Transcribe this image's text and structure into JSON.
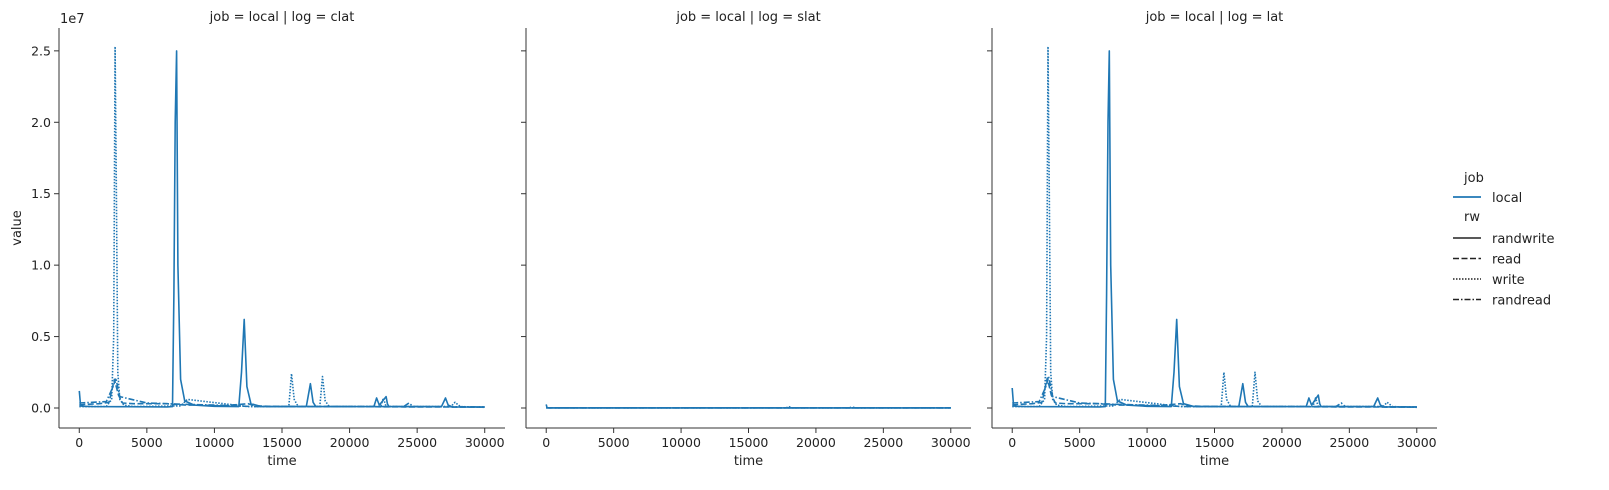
{
  "figure": {
    "shared_ylabel": "value",
    "y_offset_label": "1e7"
  },
  "legend": {
    "job_title": "job",
    "job_entries": [
      {
        "label": "local",
        "color": "#1f77b4"
      }
    ],
    "rw_title": "rw",
    "rw_entries": [
      {
        "label": "randwrite",
        "style": "solid"
      },
      {
        "label": "read",
        "style": "dashed"
      },
      {
        "label": "write",
        "style": "dotted"
      },
      {
        "label": "randread",
        "style": "dashdot"
      }
    ]
  },
  "chart_data": [
    {
      "type": "line",
      "title": "job = local | log = clat",
      "xlabel": "time",
      "ylabel": "value",
      "xlim": [
        -1500,
        31500
      ],
      "ylim": [
        -1400000,
        26600000
      ],
      "x_ticks": [
        0,
        5000,
        10000,
        15000,
        20000,
        25000,
        30000
      ],
      "y_ticks": [
        0,
        5000000,
        10000000,
        15000000,
        20000000,
        25000000
      ],
      "y_tick_labels": [
        "0.0",
        "0.5",
        "1.0",
        "1.5",
        "2.0",
        "2.5"
      ],
      "grid": false,
      "series": [
        {
          "name": "randwrite",
          "style": "solid",
          "color": "#1f77b4",
          "x": [
            0,
            100,
            300,
            1000,
            3000,
            6500,
            6900,
            7000,
            7100,
            7200,
            7300,
            7500,
            7800,
            8500,
            10000,
            11800,
            12000,
            12200,
            12400,
            12700,
            13500,
            16800,
            17100,
            17300,
            17500,
            21800,
            22000,
            22200,
            22700,
            22800,
            22900,
            26800,
            27100,
            27300,
            27600,
            30000
          ],
          "y": [
            1200000,
            150000,
            120000,
            100000,
            90000,
            80000,
            100000,
            8000000,
            20000000,
            25000000,
            10000000,
            2000000,
            500000,
            200000,
            120000,
            100000,
            2500000,
            6200000,
            1500000,
            300000,
            100000,
            100000,
            1700000,
            400000,
            100000,
            100000,
            700000,
            200000,
            800000,
            300000,
            100000,
            100000,
            700000,
            200000,
            80000,
            60000
          ]
        },
        {
          "name": "read",
          "style": "dashed",
          "color": "#1f77b4",
          "x": [
            0,
            500,
            1500,
            2200,
            2600,
            2900,
            3200,
            4000,
            6500,
            7000,
            8000,
            9000,
            10500,
            12500,
            13000,
            14000,
            17000,
            20000,
            24000,
            30000
          ],
          "y": [
            200000,
            250000,
            300000,
            400000,
            2000000,
            900000,
            350000,
            300000,
            300000,
            250000,
            200000,
            200000,
            150000,
            300000,
            150000,
            120000,
            100000,
            100000,
            80000,
            60000
          ]
        },
        {
          "name": "write",
          "style": "dotted",
          "color": "#1f77b4",
          "x": [
            0,
            2000,
            2400,
            2550,
            2650,
            2750,
            2850,
            3000,
            3300,
            4000,
            7500,
            8000,
            12500,
            15500,
            15700,
            15900,
            16200,
            17800,
            18000,
            18200,
            18500,
            22300,
            22500,
            22700,
            27500,
            27800,
            28200,
            30000
          ],
          "y": [
            100000,
            100000,
            600000,
            5000000,
            25300000,
            15000000,
            2500000,
            600000,
            200000,
            100000,
            150000,
            600000,
            100000,
            100000,
            2400000,
            600000,
            100000,
            100000,
            2200000,
            500000,
            100000,
            100000,
            700000,
            100000,
            100000,
            400000,
            100000,
            50000
          ]
        },
        {
          "name": "randread",
          "style": "dashdot",
          "color": "#1f77b4",
          "x": [
            0,
            1000,
            2000,
            2500,
            2700,
            3000,
            5000,
            8000,
            10000,
            13000,
            20000,
            24000,
            24400,
            24700,
            30000
          ],
          "y": [
            350000,
            400000,
            450000,
            1500000,
            2100000,
            800000,
            350000,
            250000,
            200000,
            100000,
            100000,
            100000,
            350000,
            100000,
            80000
          ]
        }
      ]
    },
    {
      "type": "line",
      "title": "job = local | log = slat",
      "xlabel": "time",
      "ylabel": "",
      "xlim": [
        -1500,
        31500
      ],
      "ylim": [
        -1400000,
        26600000
      ],
      "x_ticks": [
        0,
        5000,
        10000,
        15000,
        20000,
        25000,
        30000
      ],
      "y_ticks": [
        0,
        5000000,
        10000000,
        15000000,
        20000000,
        25000000
      ],
      "y_tick_labels": [
        "",
        "",
        "",
        "",
        "",
        ""
      ],
      "grid": false,
      "series": [
        {
          "name": "randwrite",
          "style": "solid",
          "color": "#1f77b4",
          "x": [
            0,
            60,
            150,
            5000,
            10000,
            15000,
            20000,
            25000,
            30000
          ],
          "y": [
            250000,
            30000,
            10000,
            10000,
            10000,
            10000,
            10000,
            10000,
            10000
          ]
        },
        {
          "name": "read",
          "style": "dashed",
          "color": "#1f77b4",
          "x": [
            0,
            15000,
            30000
          ],
          "y": [
            15000,
            15000,
            15000
          ]
        },
        {
          "name": "write",
          "style": "dotted",
          "color": "#1f77b4",
          "x": [
            0,
            17800,
            18000,
            18200,
            30000
          ],
          "y": [
            15000,
            15000,
            90000,
            15000,
            15000
          ]
        },
        {
          "name": "randread",
          "style": "dashdot",
          "color": "#1f77b4",
          "x": [
            0,
            22500,
            22700,
            22900,
            30000
          ],
          "y": [
            15000,
            15000,
            80000,
            15000,
            15000
          ]
        }
      ]
    },
    {
      "type": "line",
      "title": "job = local | log = lat",
      "xlabel": "time",
      "ylabel": "",
      "xlim": [
        -1500,
        31500
      ],
      "ylim": [
        -1400000,
        26600000
      ],
      "x_ticks": [
        0,
        5000,
        10000,
        15000,
        20000,
        25000,
        30000
      ],
      "y_ticks": [
        0,
        5000000,
        10000000,
        15000000,
        20000000,
        25000000
      ],
      "y_tick_labels": [
        "",
        "",
        "",
        "",
        "",
        ""
      ],
      "grid": false,
      "series": [
        {
          "name": "randwrite",
          "style": "solid",
          "color": "#1f77b4",
          "x": [
            0,
            100,
            300,
            1000,
            3000,
            6500,
            6900,
            7000,
            7100,
            7200,
            7300,
            7500,
            7800,
            8500,
            10000,
            11800,
            12000,
            12200,
            12400,
            12700,
            13500,
            16800,
            17100,
            17300,
            17500,
            21800,
            22000,
            22200,
            22700,
            22800,
            22900,
            26800,
            27100,
            27300,
            27600,
            30000
          ],
          "y": [
            1400000,
            150000,
            120000,
            100000,
            90000,
            80000,
            100000,
            8000000,
            20000000,
            25000000,
            10000000,
            2000000,
            500000,
            200000,
            120000,
            100000,
            2500000,
            6200000,
            1500000,
            300000,
            100000,
            100000,
            1700000,
            400000,
            100000,
            100000,
            700000,
            200000,
            900000,
            300000,
            100000,
            100000,
            700000,
            200000,
            80000,
            60000
          ]
        },
        {
          "name": "read",
          "style": "dashed",
          "color": "#1f77b4",
          "x": [
            0,
            500,
            1500,
            2200,
            2600,
            2900,
            3200,
            4000,
            6500,
            7000,
            8000,
            9000,
            10500,
            12500,
            13000,
            14000,
            17000,
            20000,
            24000,
            30000
          ],
          "y": [
            200000,
            250000,
            300000,
            400000,
            2100000,
            900000,
            350000,
            300000,
            300000,
            250000,
            200000,
            200000,
            150000,
            300000,
            150000,
            120000,
            100000,
            100000,
            80000,
            60000
          ]
        },
        {
          "name": "write",
          "style": "dotted",
          "color": "#1f77b4",
          "x": [
            0,
            2000,
            2400,
            2550,
            2650,
            2750,
            2850,
            3000,
            3300,
            4000,
            7500,
            8000,
            12500,
            15500,
            15700,
            15900,
            16200,
            17800,
            18000,
            18200,
            18500,
            22300,
            22500,
            22700,
            27500,
            27800,
            28200,
            30000
          ],
          "y": [
            100000,
            100000,
            600000,
            5000000,
            25300000,
            15000000,
            2500000,
            600000,
            200000,
            100000,
            150000,
            600000,
            100000,
            100000,
            2500000,
            600000,
            100000,
            100000,
            2500000,
            500000,
            100000,
            100000,
            700000,
            100000,
            100000,
            400000,
            100000,
            50000
          ]
        },
        {
          "name": "randread",
          "style": "dashdot",
          "color": "#1f77b4",
          "x": [
            0,
            1000,
            2000,
            2500,
            2700,
            3000,
            5000,
            8000,
            10000,
            13000,
            20000,
            24000,
            24400,
            24700,
            30000
          ],
          "y": [
            350000,
            400000,
            450000,
            1500000,
            2200000,
            800000,
            350000,
            250000,
            200000,
            100000,
            100000,
            100000,
            350000,
            100000,
            80000
          ]
        }
      ]
    }
  ]
}
